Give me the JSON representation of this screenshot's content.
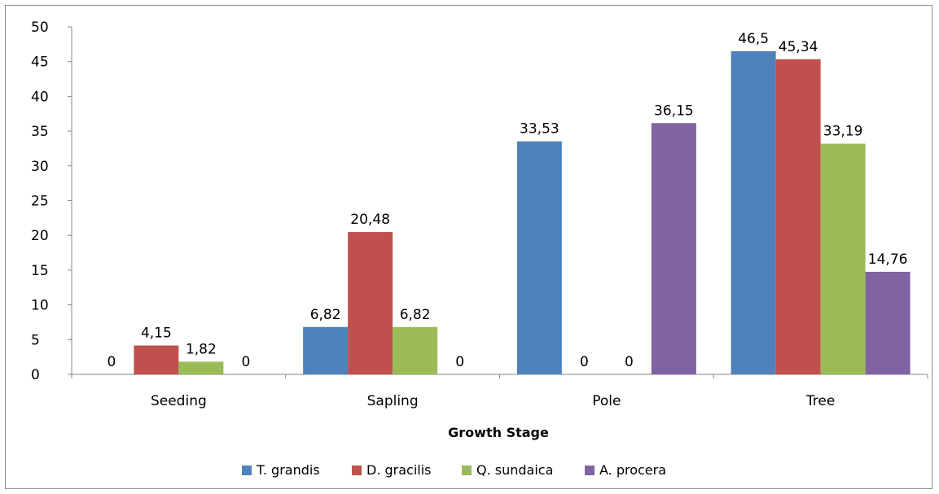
{
  "chart_data": {
    "type": "bar",
    "title": "",
    "xlabel": "Growth Stage",
    "ylabel": "",
    "categories": [
      "Seeding",
      "Sapling",
      "Pole",
      "Tree"
    ],
    "ylim": [
      0,
      50
    ],
    "yticks": [
      0,
      5,
      10,
      15,
      20,
      25,
      30,
      35,
      40,
      45,
      50
    ],
    "grid": false,
    "legend_position": "bottom",
    "series": [
      {
        "name": "T. grandis",
        "color": "#4f81bd",
        "values": [
          0,
          6.82,
          33.53,
          46.5
        ],
        "labels": [
          "0",
          "6,82",
          "33,53",
          "46,5"
        ]
      },
      {
        "name": "D. gracilis",
        "color": "#c0504d",
        "values": [
          4.15,
          20.48,
          0,
          45.34
        ],
        "labels": [
          "4,15",
          "20,48",
          "0",
          "45,34"
        ]
      },
      {
        "name": "Q. sundaica",
        "color": "#9bbb59",
        "values": [
          1.82,
          6.82,
          0,
          33.19
        ],
        "labels": [
          "1,82",
          "6,82",
          "0",
          "33,19"
        ]
      },
      {
        "name": "A. procera",
        "color": "#8064a2",
        "values": [
          0,
          0,
          36.15,
          14.76
        ],
        "labels": [
          "0",
          "0",
          "36,15",
          "14,76"
        ]
      }
    ]
  }
}
